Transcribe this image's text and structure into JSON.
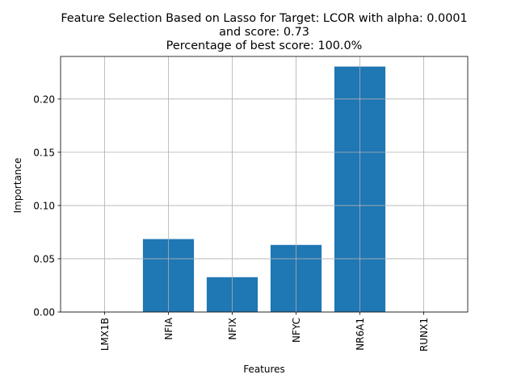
{
  "chart_data": {
    "type": "bar",
    "title_lines": [
      "Feature Selection Based on Lasso for Target: LCOR with alpha: 0.0001",
      "and score: 0.73",
      "Percentage of best score: 100.0%"
    ],
    "xlabel": "Features",
    "ylabel": "Importance",
    "categories": [
      "LMX1B",
      "NFIA",
      "NFIX",
      "NFYC",
      "NR6A1",
      "RUNX1"
    ],
    "values": [
      0.0,
      0.0685,
      0.0327,
      0.063,
      0.2305,
      0.0
    ],
    "ylim": [
      0,
      0.24
    ],
    "yticks": [
      0.0,
      0.05,
      0.1,
      0.15,
      0.2
    ],
    "ytick_labels": [
      "0.00",
      "0.05",
      "0.10",
      "0.15",
      "0.20"
    ],
    "grid": true,
    "bar_color": "#1f77b4"
  }
}
